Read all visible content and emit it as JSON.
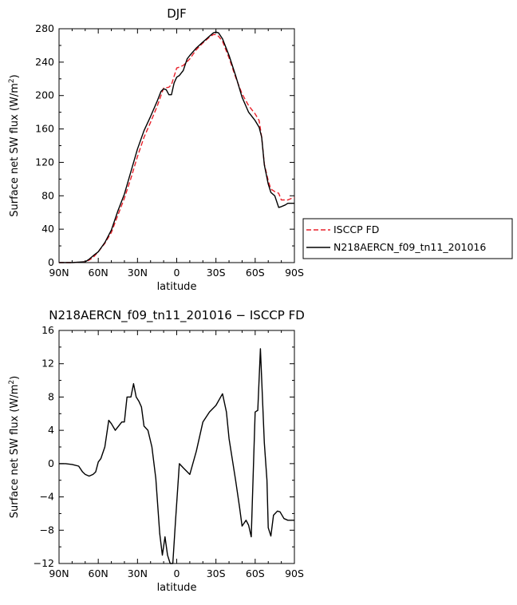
{
  "chart_data": [
    {
      "type": "line",
      "title": "DJF",
      "xlabel": "latitude",
      "ylabel": "Surface net SW flux (W/m²)",
      "ylabel_main": "Surface net SW flux (W/m",
      "ylabel_sup": "2",
      "ylabel_end": ")",
      "xlim": [
        90,
        -90
      ],
      "ylim": [
        0,
        280
      ],
      "xticks": [
        90,
        60,
        30,
        0,
        -30,
        -60,
        -90
      ],
      "xtick_labels": [
        "90N",
        "60N",
        "30N",
        "0",
        "30S",
        "60S",
        "90S"
      ],
      "yticks": [
        0,
        40,
        80,
        120,
        160,
        200,
        240,
        280
      ],
      "ytick_labels": [
        "0",
        "40",
        "80",
        "120",
        "160",
        "200",
        "240",
        "280"
      ],
      "legend_position": "outside-right",
      "series": [
        {
          "name": "ISCCP FD",
          "color": "#e8202a",
          "dash": true,
          "x": [
            90,
            85,
            80,
            75,
            70,
            67,
            64,
            60,
            55,
            50,
            45,
            40,
            35,
            30,
            25,
            20,
            15,
            12,
            10,
            6,
            4,
            2,
            0,
            -2,
            -5,
            -10,
            -15,
            -20,
            -25,
            -28,
            -30,
            -32,
            -35,
            -38,
            -40,
            -45,
            -50,
            -55,
            -60,
            -63,
            -65,
            -67,
            -70,
            -72,
            -75,
            -78,
            -80,
            -83,
            -85,
            -88,
            -90
          ],
          "y": [
            0,
            0,
            0,
            0.5,
            1,
            3,
            6,
            13,
            23,
            36,
            57,
            77,
            101,
            127,
            150,
            168,
            187,
            200,
            209,
            210,
            213,
            223,
            233,
            234,
            236,
            244,
            255,
            263,
            270,
            273,
            273,
            271,
            265,
            253,
            245,
            222,
            202,
            188,
            178,
            170,
            150,
            118,
            98,
            88,
            85,
            83,
            75,
            75,
            75,
            77,
            78
          ]
        },
        {
          "name": "N218AERCN_f09_tn11_201016",
          "color": "#000000",
          "dash": false,
          "x": [
            90,
            85,
            80,
            75,
            70,
            67,
            64,
            60,
            55,
            50,
            45,
            40,
            35,
            30,
            25,
            20,
            15,
            12,
            10,
            8,
            6,
            4,
            2,
            0,
            -2,
            -5,
            -8,
            -10,
            -15,
            -20,
            -25,
            -28,
            -30,
            -32,
            -35,
            -38,
            -40,
            -45,
            -50,
            -55,
            -60,
            -63,
            -65,
            -67,
            -70,
            -72,
            -75,
            -78,
            -80,
            -83,
            -85,
            -88,
            -90
          ],
          "y": [
            0,
            0,
            0,
            0.5,
            1,
            4,
            8,
            13,
            24,
            39,
            62,
            82,
            109,
            136,
            158,
            175,
            193,
            205,
            208,
            207,
            201,
            201,
            215,
            222,
            224,
            230,
            244,
            248,
            257,
            264,
            271,
            275,
            276,
            275,
            268,
            256,
            248,
            224,
            198,
            180,
            170,
            162,
            150,
            117,
            94,
            84,
            80,
            66,
            67,
            69,
            71,
            71,
            71
          ]
        }
      ]
    },
    {
      "type": "line",
      "title": "N218AERCN_f09_tn11_201016 − ISCCP FD",
      "xlabel": "latitude",
      "ylabel": "Surface net SW flux (W/m²)",
      "ylabel_main": "Surface net SW flux (W/m",
      "ylabel_sup": "2",
      "ylabel_end": ")",
      "xlim": [
        90,
        -90
      ],
      "ylim": [
        -12,
        16
      ],
      "xticks": [
        90,
        60,
        30,
        0,
        -30,
        -60,
        -90
      ],
      "xtick_labels": [
        "90N",
        "60N",
        "30N",
        "0",
        "30S",
        "60S",
        "90S"
      ],
      "yticks": [
        -12,
        -8,
        -4,
        0,
        4,
        8,
        12,
        16
      ],
      "ytick_labels": [
        "−12",
        "−8",
        "−4",
        "0",
        "4",
        "8",
        "12",
        "16"
      ],
      "series": [
        {
          "color": "#000000",
          "dash": false,
          "x": [
            90,
            85,
            80,
            75,
            72,
            70,
            67,
            64,
            62,
            60,
            58,
            55,
            52,
            50,
            47,
            42,
            40,
            38,
            35,
            33,
            31,
            29,
            27,
            25,
            22,
            19,
            16,
            13,
            11,
            9,
            7,
            5,
            3,
            1,
            -2,
            -5,
            -10,
            -15,
            -20,
            -25,
            -30,
            -35,
            -38,
            -40,
            -45,
            -48,
            -50,
            -53,
            -55,
            -57,
            -60,
            -62,
            -64,
            -67,
            -69,
            -70,
            -72,
            -74,
            -77,
            -79,
            -82,
            -85,
            -88,
            -90
          ],
          "y": [
            0,
            0,
            -0.1,
            -0.3,
            -1,
            -1.3,
            -1.5,
            -1.3,
            -1.0,
            0.2,
            0.6,
            2.0,
            5.2,
            4.8,
            4.0,
            5.0,
            5.0,
            8.0,
            8.0,
            9.6,
            8.0,
            7.5,
            6.8,
            4.5,
            4.0,
            2.0,
            -1.8,
            -8.4,
            -11.0,
            -8.8,
            -11.0,
            -12.0,
            -12.0,
            -7.0,
            0,
            -0.5,
            -1.3,
            1.5,
            5.0,
            6.2,
            7.0,
            8.4,
            6.2,
            3.0,
            -2.0,
            -5.2,
            -7.5,
            -6.8,
            -7.4,
            -8.8,
            6.2,
            6.4,
            13.8,
            2.5,
            -2.0,
            -7.7,
            -8.7,
            -6.2,
            -5.7,
            -5.8,
            -6.6,
            -6.8,
            -6.8,
            -6.8
          ]
        }
      ]
    }
  ]
}
